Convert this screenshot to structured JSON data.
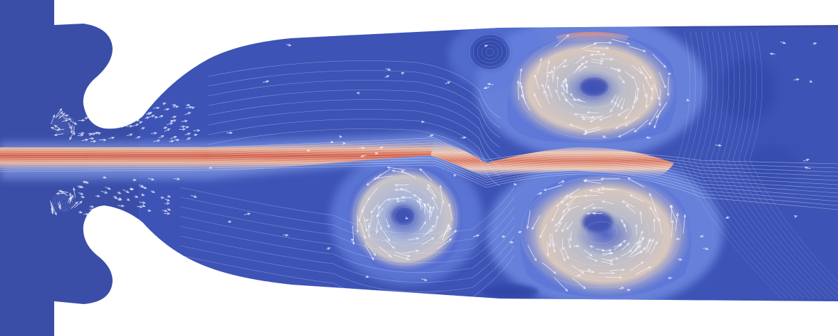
{
  "figure": {
    "kind": "cfd-velocity-magnitude-with-streamlines-and-vectors",
    "background_color": "#ffffff"
  },
  "colormap": {
    "name": "cool-warm",
    "low": "#3b4cc0",
    "mid": "#dcdddd",
    "high": "#d1493f",
    "domain_fill": "#3a4ea8"
  },
  "overlay": {
    "streamline_color": "#e8ecff",
    "vector_color": "#f4f6ff"
  },
  "vortices": [
    {
      "name": "upper-right-vortex",
      "strength": 0.55
    },
    {
      "name": "lower-right-vortex",
      "strength": 0.55
    },
    {
      "name": "lower-left-vortex",
      "strength": 0.45
    },
    {
      "name": "upper-left-small-vortex",
      "strength": 0.3
    },
    {
      "name": "upper-left-nozzle-vortex",
      "strength": 0.2
    },
    {
      "name": "lower-left-nozzle-vortex",
      "strength": 0.2
    }
  ]
}
